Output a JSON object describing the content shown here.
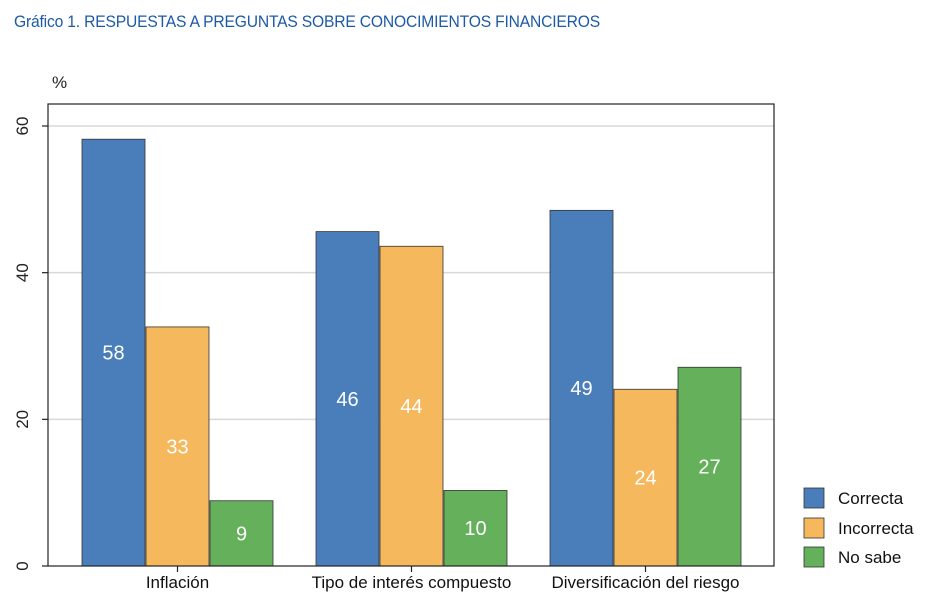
{
  "chart_data": {
    "type": "bar",
    "title": "Gráfico 1. RESPUESTAS A PREGUNTAS SOBRE CONOCIMIENTOS FINANCIEROS",
    "ylabel": "%",
    "xlabel": "",
    "ylim": [
      0,
      60
    ],
    "yticks": [
      "0",
      "20",
      "40",
      "60"
    ],
    "grid": true,
    "legend_position": "right-bottom",
    "categories": [
      "Inflación",
      "Tipo de interés compuesto",
      "Diversificación del riesgo"
    ],
    "series": [
      {
        "name": "Correcta",
        "color": "#4a7ebb",
        "values": [
          58.2,
          45.6,
          48.5
        ],
        "labels": [
          "58",
          "46",
          "49"
        ]
      },
      {
        "name": "Incorrecta",
        "color": "#f6b85d",
        "values": [
          32.6,
          43.6,
          24.1
        ],
        "labels": [
          "33",
          "44",
          "24"
        ]
      },
      {
        "name": "No sabe",
        "color": "#64b05b",
        "values": [
          8.9,
          10.3,
          27.1
        ],
        "labels": [
          "9",
          "10",
          "27"
        ]
      }
    ]
  }
}
